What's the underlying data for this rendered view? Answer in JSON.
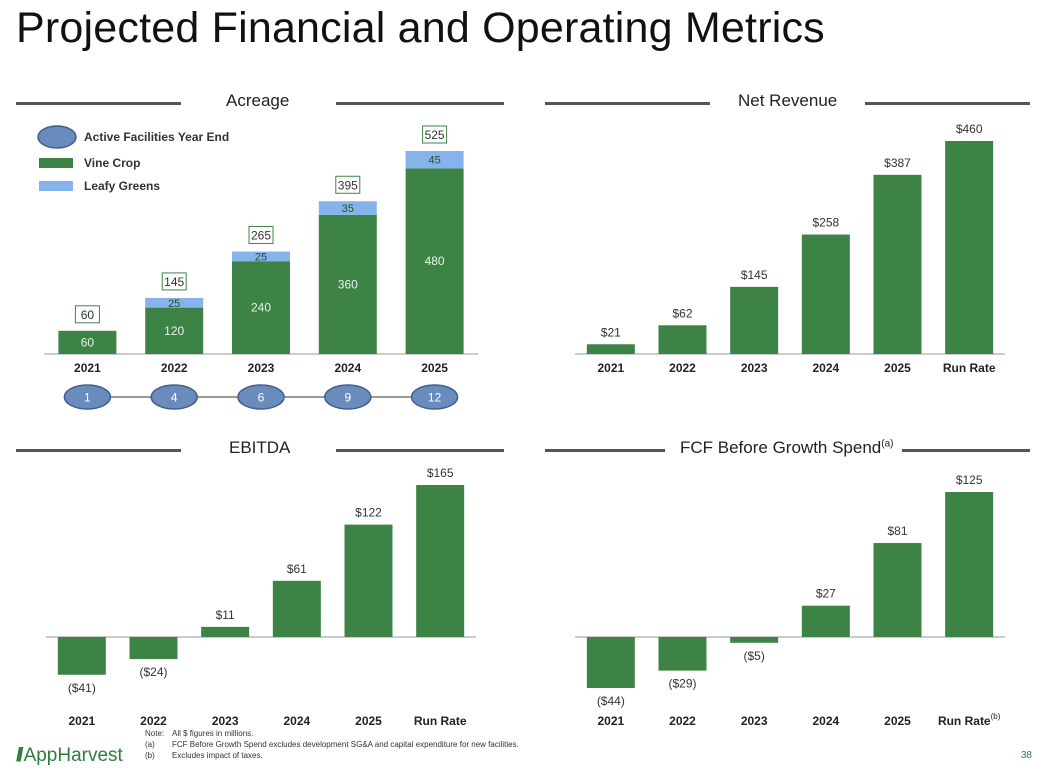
{
  "page": {
    "title": "Projected Financial and Operating Metrics",
    "logo_text": "AppHarvest",
    "page_number": "38",
    "notes": [
      {
        "key": "Note:",
        "text": "All $ figures in millions."
      },
      {
        "key": "(a)",
        "text": "FCF Before Growth Spend excludes development SG&A and capital expenditure for new facilities."
      },
      {
        "key": "(b)",
        "text": "Excludes impact of taxes."
      }
    ]
  },
  "colors": {
    "vine_crop": "#3e8346",
    "leafy_greens": "#86b3ec",
    "facility_oval": "#6a8cbd",
    "facility_oval_border": "#3f5f8f",
    "total_box_border": "#3e8346",
    "rule": "#555555"
  },
  "chart_data": [
    {
      "id": "acreage",
      "type": "bar",
      "stacked": true,
      "title": "Acreage",
      "categories": [
        "2021",
        "2022",
        "2023",
        "2024",
        "2025"
      ],
      "series": [
        {
          "name": "Vine Crop",
          "values": [
            60,
            120,
            240,
            360,
            480
          ]
        },
        {
          "name": "Leafy Greens",
          "values": [
            0,
            25,
            25,
            35,
            45
          ]
        }
      ],
      "series_labels": [
        [
          "60",
          "120",
          "240",
          "360",
          "480"
        ],
        [
          "",
          "25",
          "25",
          "35",
          "45"
        ]
      ],
      "totals": [
        "60",
        "145",
        "265",
        "395",
        "525"
      ],
      "legend_items": [
        "Active Facilities Year End",
        "Vine Crop",
        "Leafy Greens"
      ],
      "legend_position": "top-left",
      "facilities_year_end": [
        "1",
        "4",
        "6",
        "9",
        "12"
      ],
      "ylim": [
        0,
        525
      ],
      "grid": false
    },
    {
      "id": "net-revenue",
      "type": "bar",
      "title": "Net Revenue",
      "categories": [
        "2021",
        "2022",
        "2023",
        "2024",
        "2025",
        "Run Rate"
      ],
      "values": [
        21,
        62,
        145,
        258,
        387,
        460
      ],
      "labels": [
        "$21",
        "$62",
        "$145",
        "$258",
        "$387",
        "$460"
      ],
      "ylim": [
        0,
        460
      ],
      "grid": false
    },
    {
      "id": "ebitda",
      "type": "bar",
      "title": "EBITDA",
      "categories": [
        "2021",
        "2022",
        "2023",
        "2024",
        "2025",
        "Run Rate"
      ],
      "values": [
        -41,
        -24,
        11,
        61,
        122,
        165
      ],
      "labels": [
        "($41)",
        "($24)",
        "$11",
        "$61",
        "$122",
        "$165"
      ],
      "ylim": [
        -41,
        165
      ],
      "grid": false
    },
    {
      "id": "fcf",
      "type": "bar",
      "title": "FCF Before Growth Spend",
      "title_note": "(a)",
      "categories": [
        "2021",
        "2022",
        "2023",
        "2024",
        "2025",
        "Run Rate"
      ],
      "category_notes": [
        "",
        "",
        "",
        "",
        "",
        "(b)"
      ],
      "values": [
        -44,
        -29,
        -5,
        27,
        81,
        125
      ],
      "labels": [
        "($44)",
        "($29)",
        "($5)",
        "$27",
        "$81",
        "$125"
      ],
      "ylim": [
        -44,
        125
      ],
      "grid": false
    }
  ]
}
